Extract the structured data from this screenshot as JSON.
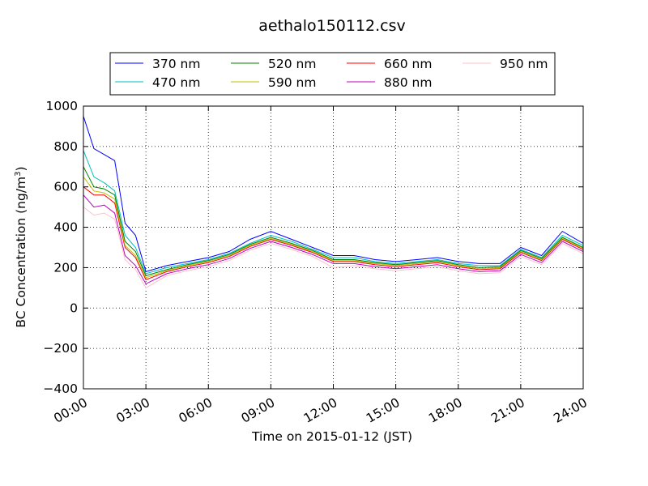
{
  "chart_data": {
    "type": "line",
    "title": "aethalo150112.csv",
    "xlabel": "Time on 2015-01-12 (JST)",
    "ylabel": "BC Concentration (ng/m",
    "ylabel_superscript": "3",
    "ylabel_suffix": ")",
    "xlim": [
      "00:00",
      "24:00"
    ],
    "ylim": [
      -400,
      1000
    ],
    "x_ticks": [
      "00:00",
      "03:00",
      "06:00",
      "09:00",
      "12:00",
      "15:00",
      "18:00",
      "21:00",
      "24:00"
    ],
    "y_ticks": [
      "1000",
      "800",
      "600",
      "400",
      "200",
      "0",
      "−200",
      "−400"
    ],
    "grid": true,
    "legend_position": "top",
    "series": [
      {
        "name": "370 nm",
        "color": "#0000ff",
        "x": [
          "00:00",
          "00:30",
          "01:00",
          "01:30",
          "02:00",
          "02:30",
          "03:00",
          "04:00",
          "05:00",
          "06:00",
          "07:00",
          "08:00",
          "09:00",
          "10:00",
          "11:00",
          "12:00",
          "13:00",
          "14:00",
          "15:00",
          "16:00",
          "17:00",
          "18:00",
          "19:00",
          "20:00",
          "21:00",
          "22:00",
          "23:00",
          "24:00"
        ],
        "values": [
          950,
          790,
          760,
          730,
          420,
          360,
          180,
          210,
          230,
          250,
          280,
          340,
          380,
          340,
          300,
          260,
          260,
          240,
          230,
          240,
          250,
          230,
          220,
          220,
          300,
          260,
          380,
          320
        ]
      },
      {
        "name": "470 nm",
        "color": "#00bfbf",
        "x": [
          "00:00",
          "00:30",
          "01:00",
          "01:30",
          "02:00",
          "02:30",
          "03:00",
          "04:00",
          "05:00",
          "06:00",
          "07:00",
          "08:00",
          "09:00",
          "10:00",
          "11:00",
          "12:00",
          "13:00",
          "14:00",
          "15:00",
          "16:00",
          "17:00",
          "18:00",
          "19:00",
          "20:00",
          "21:00",
          "22:00",
          "23:00",
          "24:00"
        ],
        "values": [
          780,
          650,
          620,
          580,
          360,
          300,
          170,
          200,
          220,
          240,
          270,
          320,
          360,
          330,
          290,
          250,
          250,
          230,
          220,
          230,
          240,
          220,
          210,
          210,
          290,
          250,
          360,
          310
        ]
      },
      {
        "name": "520 nm",
        "color": "#008000",
        "x": [
          "00:00",
          "00:30",
          "01:00",
          "01:30",
          "02:00",
          "02:30",
          "03:00",
          "04:00",
          "05:00",
          "06:00",
          "07:00",
          "08:00",
          "09:00",
          "10:00",
          "11:00",
          "12:00",
          "13:00",
          "14:00",
          "15:00",
          "16:00",
          "17:00",
          "18:00",
          "19:00",
          "20:00",
          "21:00",
          "22:00",
          "23:00",
          "24:00"
        ],
        "values": [
          700,
          600,
          590,
          560,
          330,
          280,
          160,
          190,
          215,
          235,
          265,
          315,
          350,
          320,
          285,
          240,
          240,
          225,
          215,
          225,
          235,
          215,
          200,
          205,
          285,
          245,
          350,
          300
        ]
      },
      {
        "name": "590 nm",
        "color": "#bfbf00",
        "x": [
          "00:00",
          "00:30",
          "01:00",
          "01:30",
          "02:00",
          "02:30",
          "03:00",
          "04:00",
          "05:00",
          "06:00",
          "07:00",
          "08:00",
          "09:00",
          "10:00",
          "11:00",
          "12:00",
          "13:00",
          "14:00",
          "15:00",
          "16:00",
          "17:00",
          "18:00",
          "19:00",
          "20:00",
          "21:00",
          "22:00",
          "23:00",
          "24:00"
        ],
        "values": [
          650,
          580,
          570,
          540,
          310,
          260,
          150,
          185,
          210,
          230,
          260,
          310,
          345,
          315,
          280,
          235,
          235,
          220,
          210,
          220,
          230,
          210,
          195,
          200,
          280,
          240,
          345,
          295
        ]
      },
      {
        "name": "660 nm",
        "color": "#ff0000",
        "x": [
          "00:00",
          "00:30",
          "01:00",
          "01:30",
          "02:00",
          "02:30",
          "03:00",
          "04:00",
          "05:00",
          "06:00",
          "07:00",
          "08:00",
          "09:00",
          "10:00",
          "11:00",
          "12:00",
          "13:00",
          "14:00",
          "15:00",
          "16:00",
          "17:00",
          "18:00",
          "19:00",
          "20:00",
          "21:00",
          "22:00",
          "23:00",
          "24:00"
        ],
        "values": [
          600,
          560,
          560,
          520,
          300,
          250,
          140,
          180,
          205,
          225,
          255,
          305,
          340,
          310,
          275,
          230,
          230,
          215,
          205,
          215,
          225,
          205,
          190,
          195,
          275,
          235,
          340,
          290
        ]
      },
      {
        "name": "880 nm",
        "color": "#bf00bf",
        "x": [
          "00:00",
          "00:30",
          "01:00",
          "01:30",
          "02:00",
          "02:30",
          "03:00",
          "04:00",
          "05:00",
          "06:00",
          "07:00",
          "08:00",
          "09:00",
          "10:00",
          "11:00",
          "12:00",
          "13:00",
          "14:00",
          "15:00",
          "16:00",
          "17:00",
          "18:00",
          "19:00",
          "20:00",
          "21:00",
          "22:00",
          "23:00",
          "24:00"
        ],
        "values": [
          560,
          500,
          510,
          470,
          260,
          210,
          120,
          170,
          195,
          215,
          245,
          295,
          330,
          300,
          265,
          220,
          220,
          205,
          195,
          205,
          215,
          195,
          180,
          185,
          265,
          225,
          330,
          280
        ]
      },
      {
        "name": "950 nm",
        "color": "#ffc0cb",
        "x": [
          "00:00",
          "00:30",
          "01:00",
          "01:30",
          "02:00",
          "02:30",
          "03:00",
          "04:00",
          "05:00",
          "06:00",
          "07:00",
          "08:00",
          "09:00",
          "10:00",
          "11:00",
          "12:00",
          "13:00",
          "14:00",
          "15:00",
          "16:00",
          "17:00",
          "18:00",
          "19:00",
          "20:00",
          "21:00",
          "22:00",
          "23:00",
          "24:00"
        ],
        "values": [
          500,
          460,
          470,
          440,
          240,
          190,
          100,
          160,
          185,
          205,
          235,
          285,
          320,
          290,
          255,
          200,
          210,
          195,
          185,
          195,
          205,
          185,
          170,
          175,
          255,
          215,
          320,
          270
        ]
      }
    ]
  }
}
